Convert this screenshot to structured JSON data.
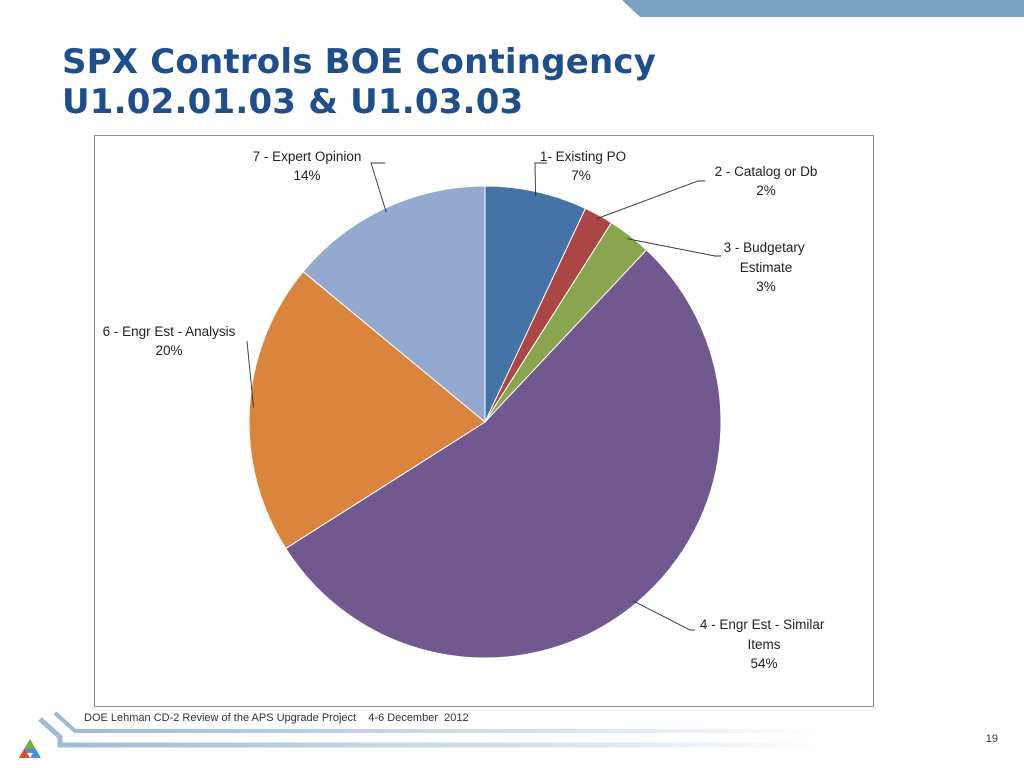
{
  "slide": {
    "title_line1": "SPX Controls BOE Contingency",
    "title_line2": "U1.02.01.03 & U1.03.03",
    "footer": "DOE Lehman CD-2 Review of the APS Upgrade Project    4-6 December  2012",
    "page_number": "19",
    "colors": {
      "title": "#1f4e8c",
      "accent_bar": "#7aa0c0"
    }
  },
  "chart_data": {
    "type": "pie",
    "title": "",
    "slices": [
      {
        "label": "1- Existing PO",
        "percent_label": "7%",
        "value": 7,
        "color": "#4572a7"
      },
      {
        "label": "2 - Catalog or Db",
        "percent_label": "2%",
        "value": 2,
        "color": "#aa4643"
      },
      {
        "label": "3 - Budgetary Estimate",
        "percent_label": "3%",
        "value": 3,
        "color": "#89a54e"
      },
      {
        "label": "4 - Engr Est - Similar Items",
        "percent_label": "54%",
        "value": 54,
        "color": "#71588f"
      },
      {
        "label": "6 - Engr Est - Analysis",
        "percent_label": "20%",
        "value": 20,
        "color": "#db843d"
      },
      {
        "label": "7 - Expert Opinion",
        "percent_label": "14%",
        "value": 14,
        "color": "#93a9cf"
      }
    ]
  }
}
